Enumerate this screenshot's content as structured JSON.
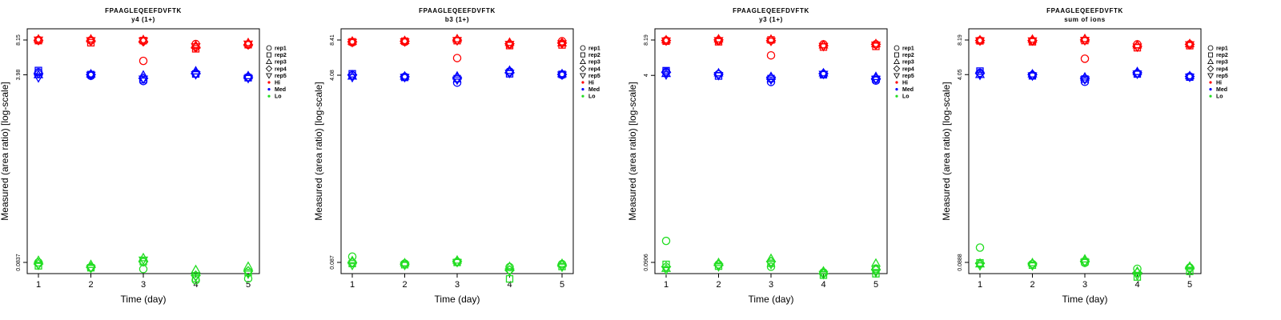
{
  "chart_data": [
    {
      "type": "scatter",
      "title": "FPAAGLEQEEFDVFTK",
      "subtitle": "y4 (1+)",
      "xlabel": "Time (day)",
      "ylabel": "Measured (area ratio) [log-scale]",
      "x_ticks": [
        "1",
        "2",
        "3",
        "4",
        "5"
      ],
      "y_ticks": [
        "0.0837",
        "3.98",
        "8.15"
      ],
      "y_scale": "log",
      "legend": {
        "placement": "right",
        "shapes": [
          "rep1",
          "rep2",
          "rep3",
          "rep4",
          "rep5"
        ],
        "groups": [
          "Hi",
          "Med",
          "Lo"
        ]
      },
      "groups": [
        {
          "name": "Hi",
          "color": "#ff0000",
          "reps": [
            [
              8.15,
              8.1,
              5.3,
              7.5,
              7.4
            ],
            [
              8.05,
              7.7,
              8.05,
              6.8,
              7.4
            ],
            [
              8.3,
              8.3,
              8.2,
              7.3,
              7.7
            ],
            [
              8.1,
              8.0,
              7.9,
              7.0,
              7.4
            ],
            [
              8.15,
              8.05,
              8.0,
              7.1,
              7.5
            ]
          ]
        },
        {
          "name": "Med",
          "color": "#0000ff",
          "reps": [
            [
              4.2,
              3.9,
              3.5,
              4.1,
              3.8
            ],
            [
              4.35,
              4.0,
              3.6,
              4.05,
              3.75
            ],
            [
              3.98,
              4.05,
              3.95,
              4.3,
              3.9
            ],
            [
              4.1,
              4.0,
              3.7,
              4.1,
              3.8
            ],
            [
              3.75,
              3.95,
              3.65,
              4.0,
              3.7
            ]
          ]
        },
        {
          "name": "Lo",
          "color": "#22dd22",
          "reps": [
            [
              0.0837,
              0.075,
              0.073,
              0.058,
              0.06
            ],
            [
              0.078,
              0.075,
              0.085,
              0.06,
              0.068
            ],
            [
              0.087,
              0.08,
              0.092,
              0.072,
              0.077
            ],
            [
              0.081,
              0.076,
              0.085,
              0.064,
              0.07
            ],
            [
              0.079,
              0.074,
              0.088,
              0.062,
              0.066
            ]
          ]
        }
      ]
    },
    {
      "type": "scatter",
      "title": "FPAAGLEQEEFDVFTK",
      "subtitle": "b3 (1+)",
      "xlabel": "Time (day)",
      "ylabel": "Measured (area ratio) [log-scale]",
      "x_ticks": [
        "1",
        "2",
        "3",
        "4",
        "5"
      ],
      "y_ticks": [
        "0.087",
        "4.08",
        "8.41"
      ],
      "y_scale": "log",
      "legend": {
        "placement": "right",
        "shapes": [
          "rep1",
          "rep2",
          "rep3",
          "rep4",
          "rep5"
        ],
        "groups": [
          "Hi",
          "Med",
          "Lo"
        ]
      },
      "groups": [
        {
          "name": "Hi",
          "color": "#ff0000",
          "reps": [
            [
              8.0,
              8.1,
              5.8,
              7.7,
              8.2
            ],
            [
              8.1,
              8.2,
              8.3,
              7.5,
              7.6
            ],
            [
              8.2,
              8.3,
              8.6,
              8.0,
              7.9
            ],
            [
              8.1,
              8.2,
              8.4,
              7.8,
              7.9
            ],
            [
              8.0,
              8.1,
              8.3,
              7.7,
              7.8
            ]
          ]
        },
        {
          "name": "Med",
          "color": "#0000ff",
          "reps": [
            [
              4.08,
              3.95,
              3.5,
              4.4,
              4.1
            ],
            [
              4.2,
              3.9,
              3.8,
              4.2,
              4.15
            ],
            [
              4.0,
              4.0,
              4.0,
              4.5,
              4.2
            ],
            [
              4.1,
              3.95,
              3.85,
              4.3,
              4.15
            ],
            [
              3.9,
              3.9,
              3.7,
              4.25,
              4.1
            ]
          ]
        },
        {
          "name": "Lo",
          "color": "#22dd22",
          "reps": [
            [
              0.098,
              0.085,
              0.088,
              0.079,
              0.084
            ],
            [
              0.085,
              0.083,
              0.087,
              0.062,
              0.08
            ],
            [
              0.09,
              0.086,
              0.091,
              0.08,
              0.085
            ],
            [
              0.087,
              0.084,
              0.089,
              0.074,
              0.082
            ],
            [
              0.082,
              0.082,
              0.087,
              0.072,
              0.079
            ]
          ]
        }
      ]
    },
    {
      "type": "scatter",
      "title": "FPAAGLEQEEFDVFTK",
      "subtitle": "y3 (1+)",
      "xlabel": "Time (day)",
      "ylabel": "Measured (area ratio) [log-scale]",
      "x_ticks": [
        "1",
        "2",
        "3",
        "4",
        "5"
      ],
      "y_ticks": [
        "0.0906",
        "4",
        "8.19"
      ],
      "y_scale": "log",
      "legend": {
        "placement": "right",
        "shapes": [
          "rep1",
          "rep2",
          "rep3",
          "rep4",
          "rep5"
        ],
        "groups": [
          "Hi",
          "Med",
          "Lo"
        ]
      },
      "groups": [
        {
          "name": "Hi",
          "color": "#ff0000",
          "reps": [
            [
              8.1,
              8.1,
              6.0,
              7.5,
              7.5
            ],
            [
              8.0,
              7.9,
              8.2,
              7.1,
              7.2
            ],
            [
              8.2,
              8.35,
              8.3,
              7.4,
              7.6
            ],
            [
              8.1,
              8.2,
              8.1,
              7.3,
              7.5
            ],
            [
              8.05,
              8.1,
              8.0,
              7.2,
              7.4
            ]
          ]
        },
        {
          "name": "Med",
          "color": "#0000ff",
          "reps": [
            [
              4.3,
              4.1,
              3.5,
              4.1,
              3.6
            ],
            [
              4.4,
              3.95,
              3.75,
              4.05,
              3.7
            ],
            [
              4.15,
              4.2,
              3.9,
              4.2,
              3.9
            ],
            [
              4.25,
              4.1,
              3.8,
              4.15,
              3.75
            ],
            [
              4.05,
              4.0,
              3.65,
              4.1,
              3.7
            ]
          ]
        },
        {
          "name": "Lo",
          "color": "#22dd22",
          "reps": [
            [
              0.14,
              0.087,
              0.083,
              0.074,
              0.08
            ],
            [
              0.087,
              0.084,
              0.089,
              0.07,
              0.072
            ],
            [
              0.08,
              0.09,
              0.098,
              0.076,
              0.089
            ],
            [
              0.083,
              0.086,
              0.092,
              0.072,
              0.078
            ],
            [
              0.078,
              0.083,
              0.087,
              0.071,
              0.074
            ]
          ]
        }
      ]
    },
    {
      "type": "scatter",
      "title": "FPAAGLEQEEFDVFTK",
      "subtitle": "sum of ions",
      "xlabel": "Time (day)",
      "ylabel": "Measured (area ratio) [log-scale]",
      "x_ticks": [
        "1",
        "2",
        "3",
        "4",
        "5"
      ],
      "y_ticks": [
        "0.0888",
        "4.05",
        "8.19"
      ],
      "y_scale": "log",
      "legend": {
        "placement": "right",
        "shapes": [
          "rep1",
          "rep2",
          "rep3",
          "rep4",
          "rep5"
        ],
        "groups": [
          "Hi",
          "Med",
          "Lo"
        ]
      },
      "groups": [
        {
          "name": "Hi",
          "color": "#ff0000",
          "reps": [
            [
              8.1,
              8.05,
              5.6,
              7.5,
              7.5
            ],
            [
              8.05,
              7.9,
              8.1,
              7.0,
              7.3
            ],
            [
              8.2,
              8.3,
              8.4,
              7.4,
              7.6
            ],
            [
              8.1,
              8.1,
              8.2,
              7.2,
              7.5
            ],
            [
              8.05,
              8.05,
              8.1,
              7.1,
              7.45
            ]
          ]
        },
        {
          "name": "Med",
          "color": "#0000ff",
          "reps": [
            [
              4.2,
              4.0,
              3.5,
              4.15,
              3.9
            ],
            [
              4.35,
              3.95,
              3.7,
              4.1,
              3.85
            ],
            [
              4.05,
              4.1,
              3.85,
              4.3,
              3.95
            ],
            [
              4.15,
              4.05,
              3.75,
              4.2,
              3.9
            ],
            [
              4.0,
              3.95,
              3.65,
              4.1,
              3.85
            ]
          ]
        },
        {
          "name": "Lo",
          "color": "#22dd22",
          "reps": [
            [
              0.12,
              0.086,
              0.088,
              0.078,
              0.08
            ],
            [
              0.088,
              0.084,
              0.09,
              0.066,
              0.074
            ],
            [
              0.086,
              0.088,
              0.095,
              0.074,
              0.082
            ],
            [
              0.087,
              0.086,
              0.091,
              0.072,
              0.079
            ],
            [
              0.083,
              0.083,
              0.089,
              0.068,
              0.076
            ]
          ]
        }
      ]
    }
  ]
}
